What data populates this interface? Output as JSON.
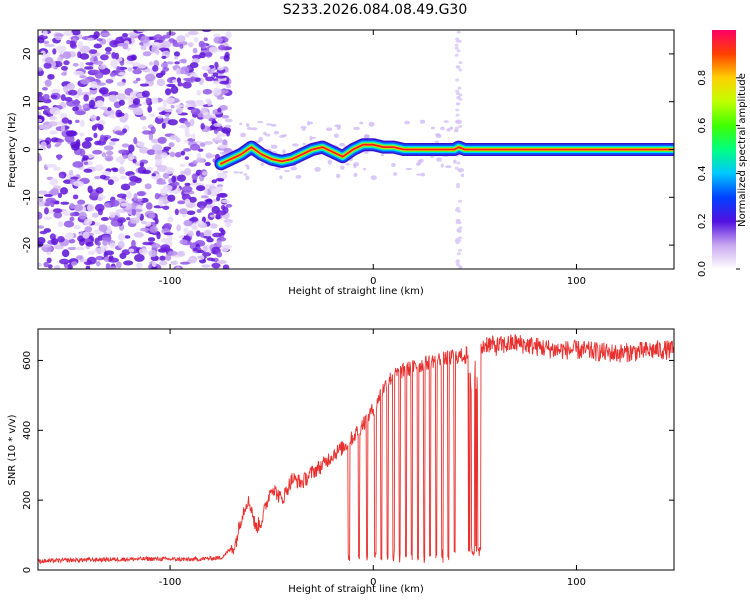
{
  "title": "S233.2026.084.08.49.G30",
  "chart_data": [
    {
      "type": "heatmap",
      "xlabel": "Height of straight line (km)",
      "ylabel": "Frequency (Hz)",
      "xlim": [
        -165,
        148
      ],
      "ylim": [
        -25,
        25
      ],
      "xticks": [
        -100,
        0,
        100
      ],
      "yticks": [
        -20,
        -10,
        0,
        10,
        20
      ],
      "noise_region_x": [
        -165,
        -75
      ],
      "signal_track": {
        "x": [
          -75,
          -70,
          -65,
          -60,
          -55,
          -50,
          -45,
          -40,
          -35,
          -30,
          -25,
          -20,
          -15,
          -10,
          -5,
          0,
          5,
          10,
          15,
          20,
          25,
          30,
          35,
          40,
          42,
          45,
          50,
          60,
          80,
          100,
          120,
          148
        ],
        "freq": [
          -3,
          -2,
          -1,
          0.5,
          -1,
          -2,
          -2.5,
          -2,
          -1,
          0,
          0.5,
          -0.5,
          -1.5,
          0,
          1,
          1,
          0.5,
          0.5,
          0,
          0,
          0,
          0,
          0,
          0,
          0.5,
          0,
          0,
          0,
          0,
          0,
          0,
          0
        ]
      },
      "colorbar": {
        "label": "Normalized spectral amplitude",
        "ticks": [
          0.0,
          0.2,
          0.4,
          0.6,
          0.8
        ],
        "range": [
          0,
          1
        ]
      }
    },
    {
      "type": "line",
      "xlabel": "Height of straight line (km)",
      "ylabel": "SNR (10 * v/v)",
      "xlim": [
        -165,
        148
      ],
      "ylim": [
        0,
        690
      ],
      "xticks": [
        -100,
        0,
        100
      ],
      "yticks": [
        0,
        200,
        400,
        600
      ],
      "series": [
        {
          "name": "SNR",
          "color": "#e8312f",
          "x": [
            -165,
            -150,
            -130,
            -110,
            -90,
            -75,
            -68,
            -65,
            -62,
            -60,
            -58,
            -55,
            -50,
            -45,
            -40,
            -35,
            -30,
            -25,
            -20,
            -15,
            -10,
            -5,
            0,
            5,
            10,
            15,
            20,
            25,
            30,
            35,
            40,
            45,
            48,
            50,
            52,
            54,
            56,
            60,
            70,
            80,
            90,
            100,
            110,
            120,
            130,
            140,
            148
          ],
          "y": [
            25,
            28,
            30,
            32,
            30,
            35,
            70,
            150,
            200,
            180,
            120,
            140,
            240,
            200,
            260,
            250,
            280,
            300,
            330,
            350,
            380,
            420,
            460,
            520,
            560,
            570,
            580,
            590,
            600,
            605,
            610,
            615,
            610,
            600,
            620,
            640,
            650,
            640,
            650,
            640,
            630,
            630,
            625,
            620,
            625,
            630,
            630
          ]
        }
      ],
      "dropouts_x": [
        -12,
        -7,
        -3,
        1,
        4,
        7,
        10,
        13,
        16,
        19,
        22,
        25,
        28,
        31,
        34,
        37,
        40,
        47,
        48,
        49,
        50,
        51,
        52
      ]
    }
  ]
}
